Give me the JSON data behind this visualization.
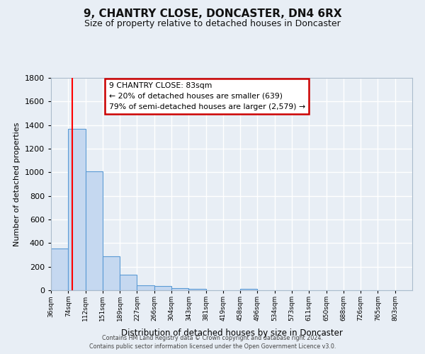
{
  "title": "9, CHANTRY CLOSE, DONCASTER, DN4 6RX",
  "subtitle": "Size of property relative to detached houses in Doncaster",
  "xlabel": "Distribution of detached houses by size in Doncaster",
  "ylabel": "Number of detached properties",
  "bins": [
    "36sqm",
    "74sqm",
    "112sqm",
    "151sqm",
    "189sqm",
    "227sqm",
    "266sqm",
    "304sqm",
    "343sqm",
    "381sqm",
    "419sqm",
    "458sqm",
    "496sqm",
    "534sqm",
    "573sqm",
    "611sqm",
    "650sqm",
    "688sqm",
    "726sqm",
    "765sqm",
    "803sqm"
  ],
  "bar_heights": [
    355,
    1370,
    1010,
    290,
    130,
    40,
    35,
    20,
    15,
    0,
    0,
    15,
    0,
    0,
    0,
    0,
    0,
    0,
    0,
    0,
    0
  ],
  "bar_color": "#c5d8f0",
  "bar_edge_color": "#5b9bd5",
  "red_line_x": 1.24,
  "annotation_title": "9 CHANTRY CLOSE: 83sqm",
  "annotation_line1": "← 20% of detached houses are smaller (639)",
  "annotation_line2": "79% of semi-detached houses are larger (2,579) →",
  "annotation_box_color": "#ffffff",
  "annotation_border_color": "#cc0000",
  "ylim": [
    0,
    1800
  ],
  "yticks": [
    0,
    200,
    400,
    600,
    800,
    1000,
    1200,
    1400,
    1600,
    1800
  ],
  "footer1": "Contains HM Land Registry data © Crown copyright and database right 2024.",
  "footer2": "Contains public sector information licensed under the Open Government Licence v3.0.",
  "bg_color": "#e8eef5",
  "plot_bg_color": "#e8eef5",
  "grid_color": "#ffffff"
}
